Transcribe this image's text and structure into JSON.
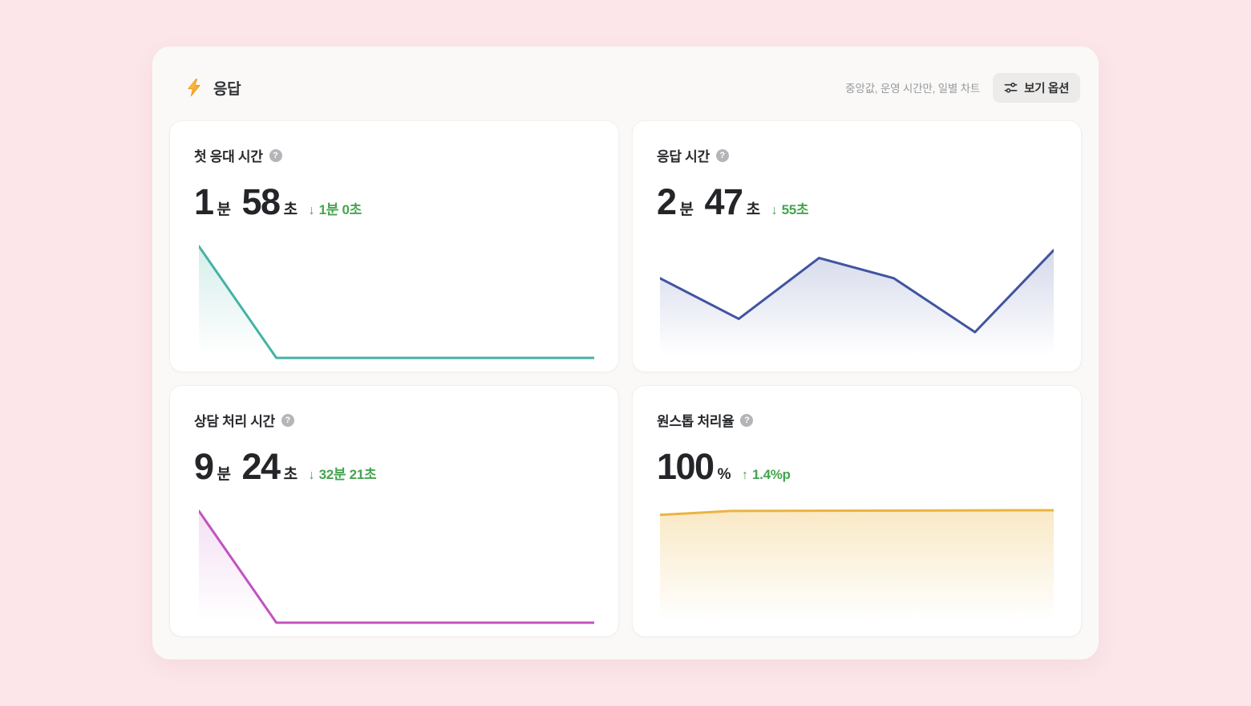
{
  "header": {
    "title": "응답",
    "summary": "중앙값, 운영 시간만, 일별 차트",
    "view_options_button": "보기 옵션"
  },
  "ui": {
    "help_glyph": "?"
  },
  "colors": {
    "page_background": "#FCE6E9",
    "panel_background": "#FAF9F8",
    "card_background": "#FFFFFF",
    "positive_change_green": "#45A44E",
    "teal_line": "#45B3A6",
    "navy_line": "#4154A1",
    "magenta_line": "#C253BF",
    "amber_line": "#EBB440",
    "bolt_yellow": "#FFC93D",
    "bolt_orange": "#F0921E"
  },
  "cards": [
    {
      "title": "첫 응대 시간",
      "value": {
        "num1": "1",
        "unit1": "분",
        "num2": "58",
        "unit2": "초"
      },
      "change": {
        "arrow": "↓",
        "label": "1분 0초",
        "direction": "down"
      }
    },
    {
      "title": "응답 시간",
      "value": {
        "num1": "2",
        "unit1": "분",
        "num2": "47",
        "unit2": "초"
      },
      "change": {
        "arrow": "↓",
        "label": "55초",
        "direction": "down"
      }
    },
    {
      "title": "상담 처리 시간",
      "value": {
        "num1": "9",
        "unit1": "분",
        "num2": "24",
        "unit2": "초"
      },
      "change": {
        "arrow": "↓",
        "label": "32분 21초",
        "direction": "down"
      }
    },
    {
      "title": "원스톱 처리율",
      "value": {
        "num1": "100",
        "unit1": "%"
      },
      "change": {
        "arrow": "↑",
        "label": "1.4%p",
        "direction": "up"
      }
    }
  ],
  "chart_data": [
    {
      "type": "line",
      "title": "첫 응대 시간 일별 추이",
      "units": "relative (no axes shown)",
      "line_color": "#45B3A6",
      "fill_opacity": 0.22,
      "points": [
        [
          0,
          3
        ],
        [
          98,
          146
        ],
        [
          500,
          146
        ]
      ],
      "x_axis": "hidden",
      "y_axis": "hidden",
      "shape_note": "starts high, drops steeply to minimum at ~20% width, then flat to right edge"
    },
    {
      "type": "line",
      "title": "응답 시간 일별 추이",
      "units": "relative (no axes shown)",
      "line_color": "#4154A1",
      "fill_opacity": 0.22,
      "points": [
        [
          0,
          44
        ],
        [
          100,
          96
        ],
        [
          202,
          18
        ],
        [
          297,
          44
        ],
        [
          400,
          113
        ],
        [
          500,
          8
        ]
      ],
      "x_axis": "hidden",
      "y_axis": "hidden",
      "shape_note": "zigzag: mid start, dip, high peak, slight fall, deep trough, rises to top at right"
    },
    {
      "type": "line",
      "title": "상담 처리 시간 일별 추이",
      "units": "relative (no axes shown)",
      "line_color": "#C253BF",
      "fill_opacity": 0.18,
      "points": [
        [
          0,
          3
        ],
        [
          98,
          146
        ],
        [
          500,
          146
        ]
      ],
      "x_axis": "hidden",
      "y_axis": "hidden",
      "shape_note": "starts high, drops steeply to minimum at ~20% width, then flat to right edge"
    },
    {
      "type": "line",
      "title": "원스톱 처리율 일별 추이",
      "units": "relative (no axes shown)",
      "line_color": "#EBB440",
      "fill_opacity": 0.3,
      "points": [
        [
          0,
          8
        ],
        [
          90,
          3
        ],
        [
          500,
          2
        ]
      ],
      "x_axis": "hidden",
      "y_axis": "hidden",
      "shape_note": "nearly flat line at maximum (100%) across full width with slight rise at left"
    }
  ]
}
